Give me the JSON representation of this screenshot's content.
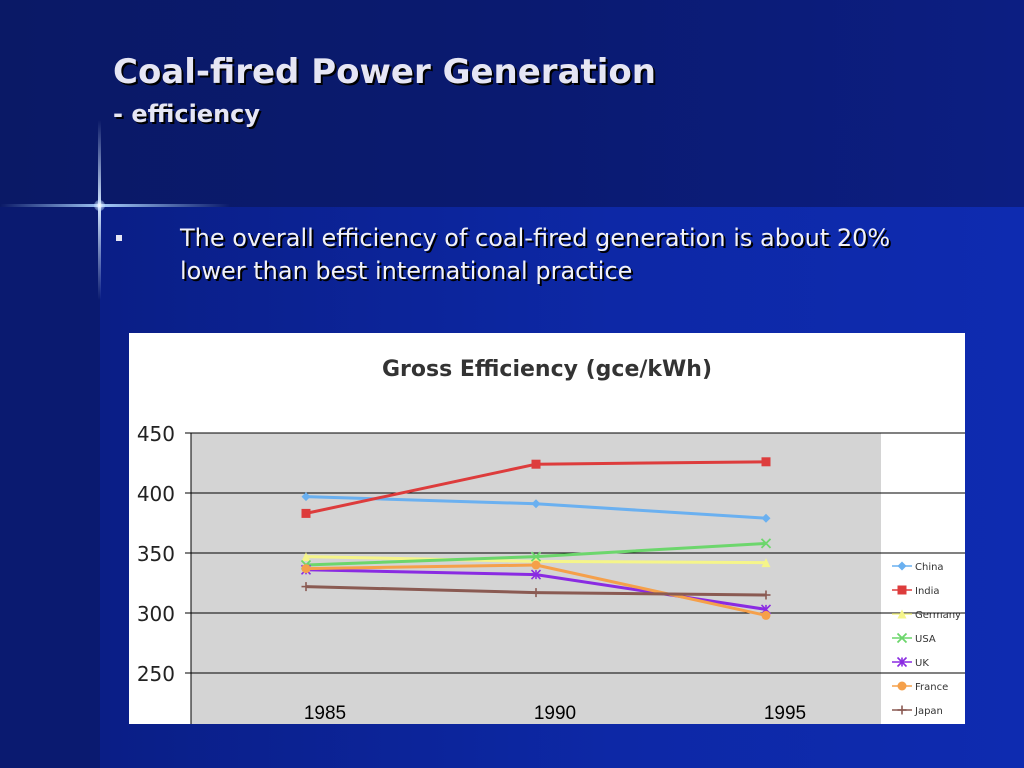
{
  "slide": {
    "title": "Coal-fired Power Generation",
    "subtitle": "- efficiency",
    "bullet": "The overall efficiency of coal-fired generation is about 20% lower than best international practice"
  },
  "colors": {
    "background": "#0d28a6",
    "text": "#e6e6f4",
    "plot_area": "#d4d4d4"
  },
  "chart_data": {
    "type": "line",
    "title": "Gross Efficiency (gce/kWh)",
    "xlabel": "",
    "ylabel": "",
    "categories": [
      "1985",
      "1990",
      "1995"
    ],
    "ylim": [
      250,
      450
    ],
    "yticks": [
      "450",
      "400",
      "350",
      "300",
      "250"
    ],
    "grid": true,
    "legend_position": "right",
    "series": [
      {
        "name": "China",
        "values": [
          397,
          391,
          379
        ],
        "color": "#6ab0f0",
        "marker": "diamond"
      },
      {
        "name": "India",
        "values": [
          383,
          424,
          426
        ],
        "color": "#dd3c3c",
        "marker": "square"
      },
      {
        "name": "Germany",
        "values": [
          347,
          343,
          342
        ],
        "color": "#f5f58a",
        "marker": "triangle"
      },
      {
        "name": "USA",
        "values": [
          340,
          347,
          358
        ],
        "color": "#6cd66c",
        "marker": "x"
      },
      {
        "name": "UK",
        "values": [
          336,
          332,
          303
        ],
        "color": "#8a2be2",
        "marker": "star"
      },
      {
        "name": "France",
        "values": [
          337,
          340,
          298
        ],
        "color": "#f5a04a",
        "marker": "circle"
      },
      {
        "name": "Japan",
        "values": [
          322,
          317,
          315
        ],
        "color": "#8a5a52",
        "marker": "plus"
      }
    ]
  }
}
